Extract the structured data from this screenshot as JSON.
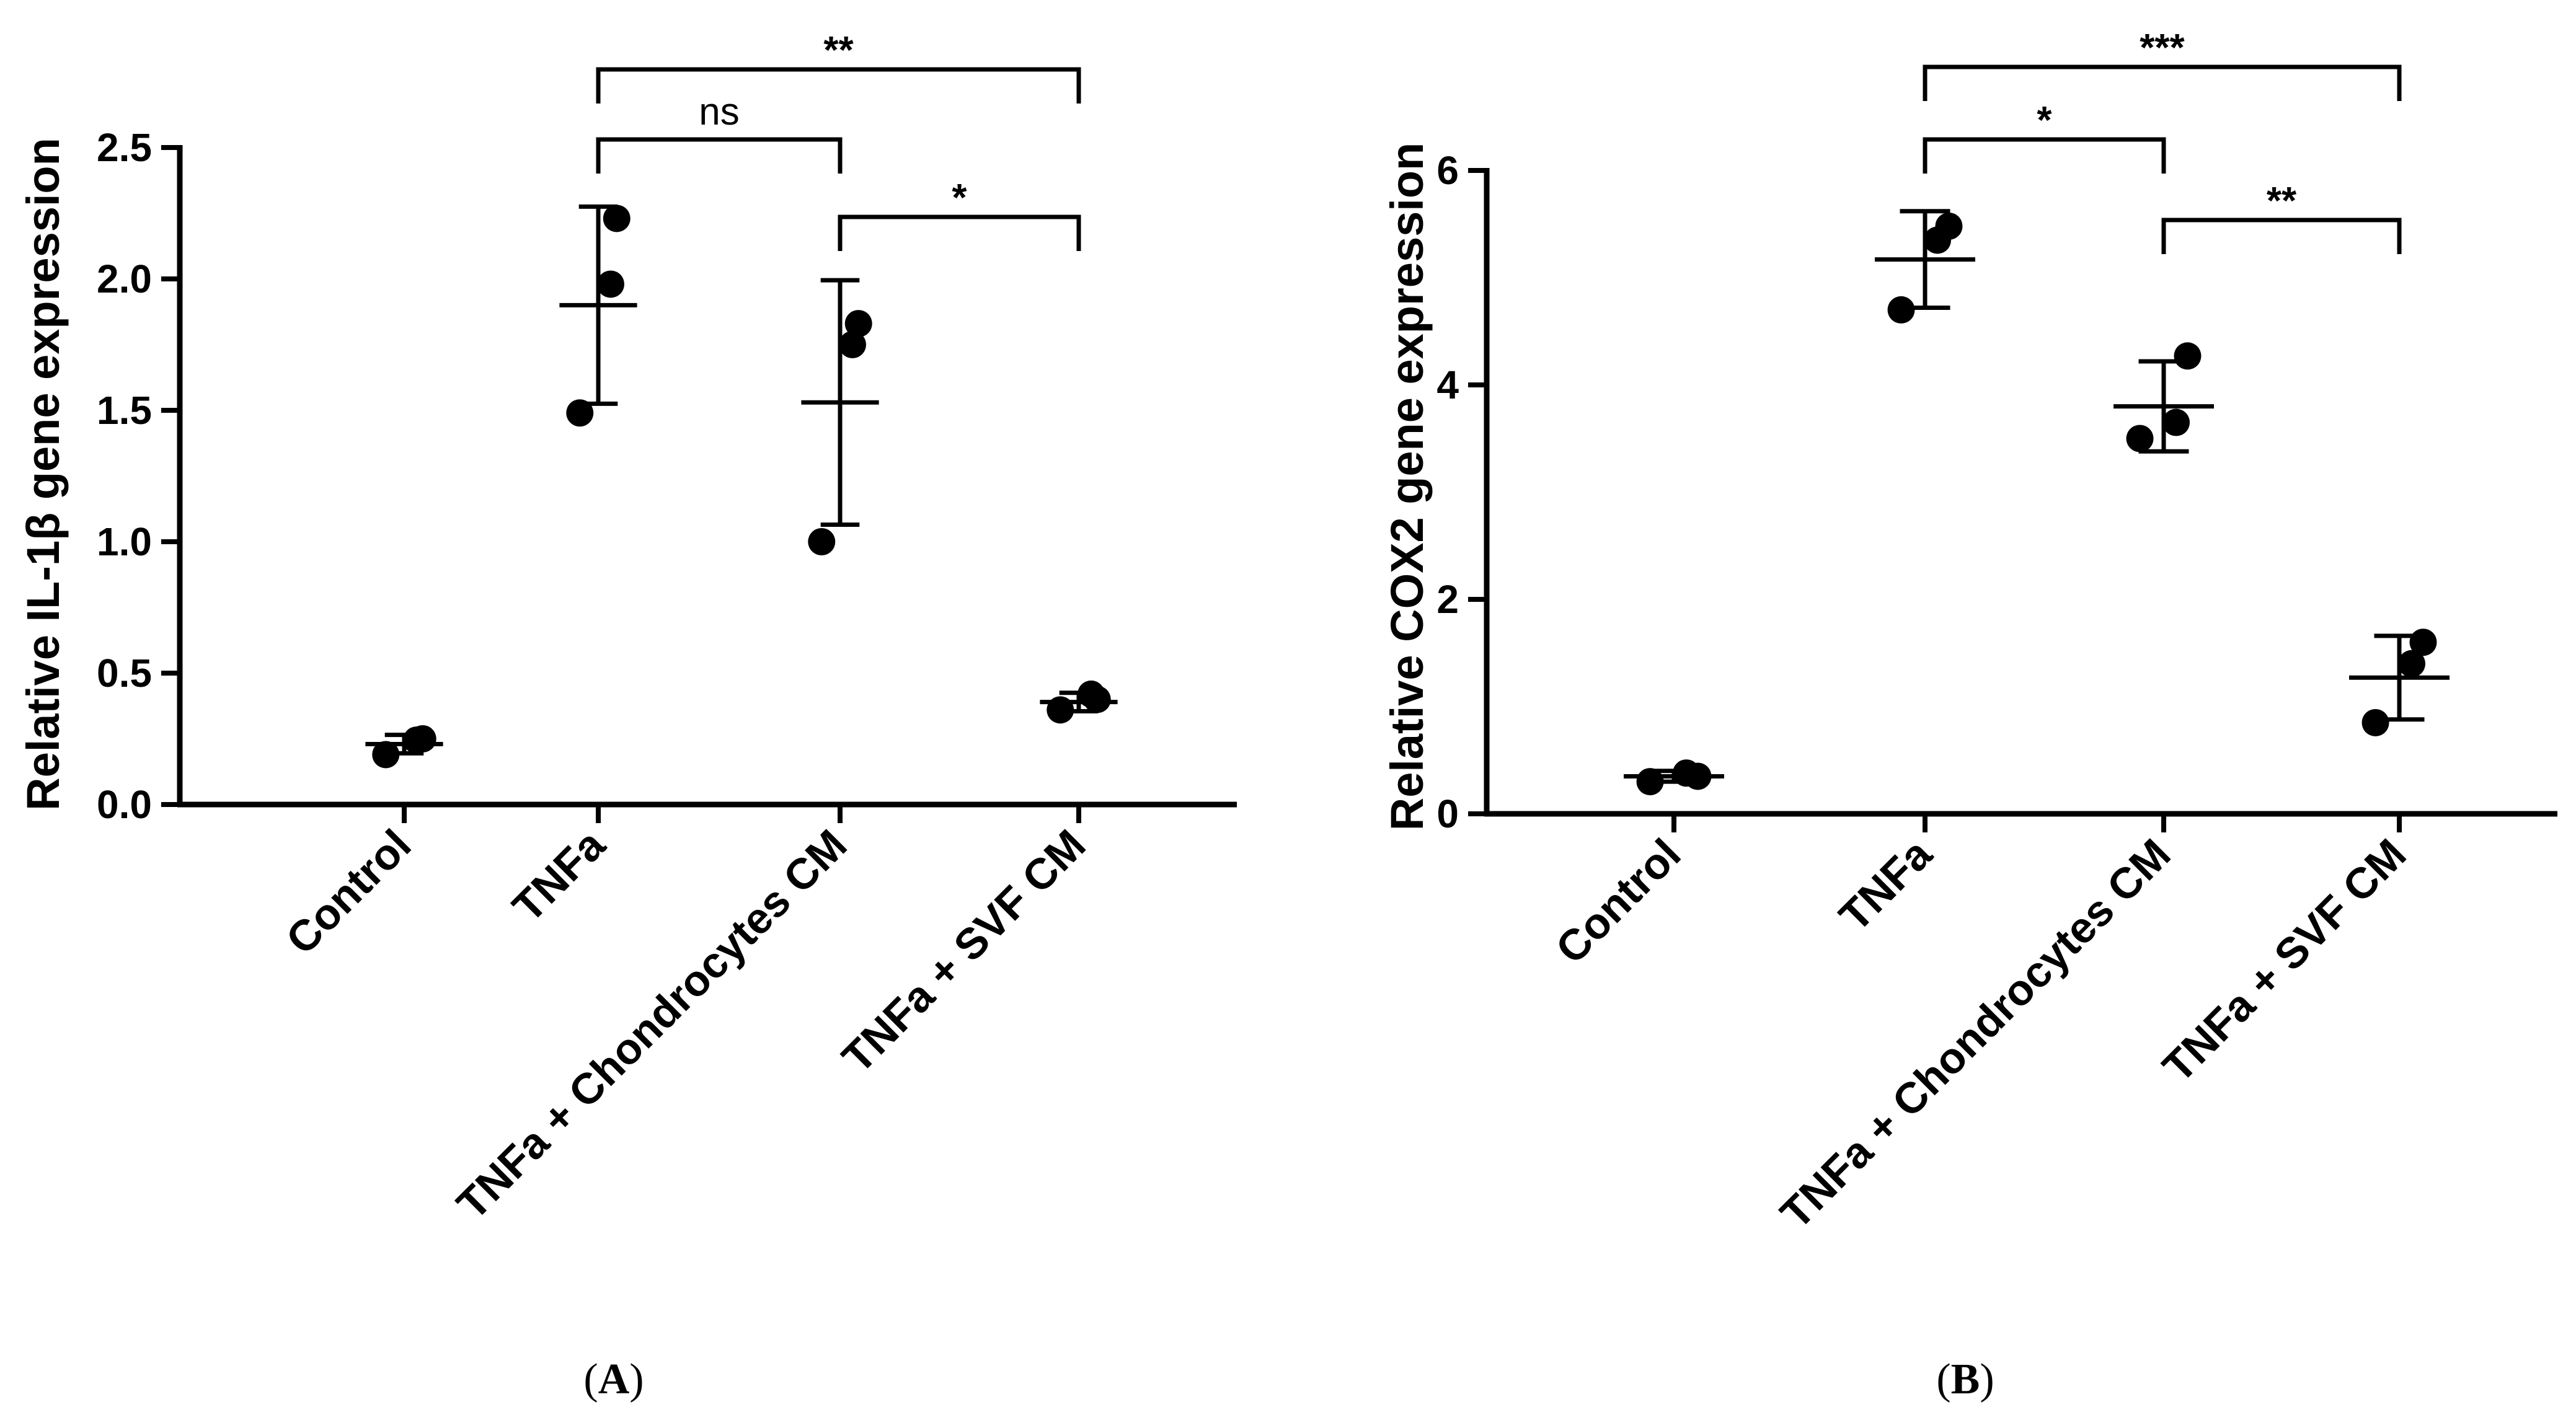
{
  "chart_data": [
    {
      "type": "scatter",
      "panel_label": "A",
      "ylabel": "Relative IL-1β gene expression",
      "ylim": [
        0,
        2.5
      ],
      "yticks": [
        "0.0",
        "0.5",
        "1.0",
        "1.5",
        "2.0",
        "2.5"
      ],
      "categories": [
        "Control",
        "TNFa",
        "TNFa + Chondrocytes CM",
        "TNFa + SVF CM"
      ],
      "points": [
        [
          0.19,
          0.245,
          0.25
        ],
        [
          1.49,
          1.98,
          2.23
        ],
        [
          1.0,
          1.75,
          1.83
        ],
        [
          0.36,
          0.42,
          0.4
        ]
      ],
      "mean": [
        0.23,
        1.9,
        1.53,
        0.39
      ],
      "sd": [
        0.035,
        0.375,
        0.465,
        0.035
      ],
      "significance": [
        {
          "from": 1,
          "to": 2,
          "label": "ns",
          "tier": 1
        },
        {
          "from": 1,
          "to": 3,
          "label": "**",
          "tier": 2
        },
        {
          "from": 2,
          "to": 3,
          "label": "*",
          "tier": 0
        }
      ]
    },
    {
      "type": "scatter",
      "panel_label": "B",
      "ylabel": "Relative COX2 gene expression",
      "ylim": [
        0,
        6
      ],
      "yticks": [
        "0",
        "2",
        "4",
        "6"
      ],
      "categories": [
        "Control",
        "TNFa",
        "TNFa + Chondrocytes CM",
        "TNFa + SVF CM"
      ],
      "points": [
        [
          0.3,
          0.38,
          0.35
        ],
        [
          4.7,
          5.35,
          5.48
        ],
        [
          3.5,
          3.65,
          4.27
        ],
        [
          0.85,
          1.4,
          1.6
        ]
      ],
      "mean": [
        0.35,
        5.17,
        3.8,
        1.27
      ],
      "sd": [
        0.05,
        0.45,
        0.42,
        0.39
      ],
      "significance": [
        {
          "from": 1,
          "to": 2,
          "label": "*",
          "tier": 1
        },
        {
          "from": 1,
          "to": 3,
          "label": "***",
          "tier": 2
        },
        {
          "from": 2,
          "to": 3,
          "label": "**",
          "tier": 0
        }
      ]
    }
  ]
}
